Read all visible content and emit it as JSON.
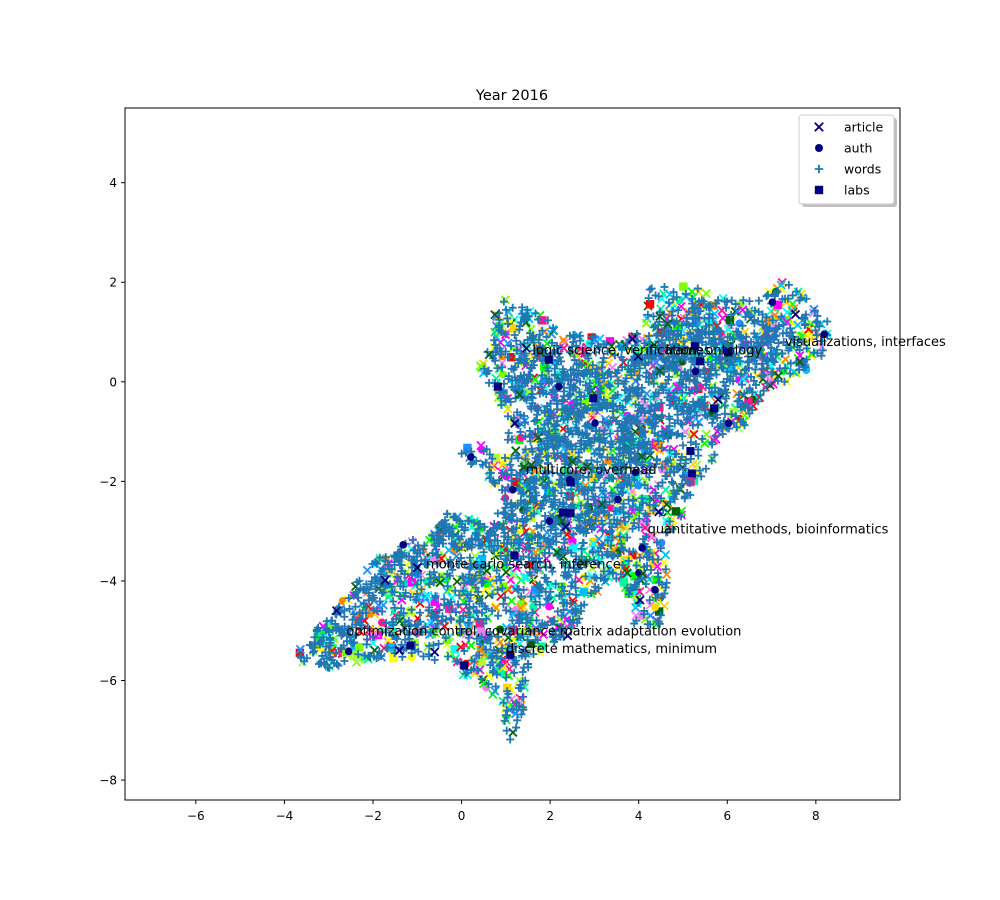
{
  "chart_data": {
    "type": "scatter",
    "title": "Year 2016",
    "xlabel": "",
    "ylabel": "",
    "xlim": [
      -7.6,
      9.9
    ],
    "ylim": [
      -8.4,
      5.5
    ],
    "xticks": [
      -6,
      -4,
      -2,
      0,
      2,
      4,
      6,
      8
    ],
    "yticks": [
      -8,
      -6,
      -4,
      -2,
      0,
      2,
      4
    ],
    "xtick_labels": [
      "−6",
      "−4",
      "−2",
      "0",
      "2",
      "4",
      "6",
      "8"
    ],
    "ytick_labels": [
      "−8",
      "−6",
      "−4",
      "−2",
      "0",
      "2",
      "4"
    ],
    "grid": false,
    "legend_position": "top-right",
    "legend": [
      {
        "label": "article",
        "marker": "x",
        "color": "#000080"
      },
      {
        "label": "auth",
        "marker": "circle",
        "color": "#000080"
      },
      {
        "label": "words",
        "marker": "plus",
        "color": "#1f77b4"
      },
      {
        "label": "labs",
        "marker": "square",
        "color": "#000080"
      }
    ],
    "cluster_annotations": [
      {
        "text": "logic science, verification, ontology",
        "x": 1.6,
        "y": 0.55
      },
      {
        "text": "frames",
        "x": 4.6,
        "y": 0.55
      },
      {
        "text": "visualizations, interfaces",
        "x": 7.3,
        "y": 0.72
      },
      {
        "text": "multicore, overhead",
        "x": 1.45,
        "y": -1.85
      },
      {
        "text": "quantitative methods, bioinformatics",
        "x": 4.2,
        "y": -3.05
      },
      {
        "text": "monte carlo search, inference",
        "x": -0.8,
        "y": -3.75
      },
      {
        "text": "optimization control, covariance matrix adaptation evolution",
        "x": -2.6,
        "y": -5.1
      },
      {
        "text": "discrete mathematics, minimum",
        "x": 1.0,
        "y": -5.45
      }
    ],
    "cloud_shape": [
      [
        -3.9,
        -5.6
      ],
      [
        -3.0,
        -5.75
      ],
      [
        -1.5,
        -5.55
      ],
      [
        -0.3,
        -5.7
      ],
      [
        0.4,
        -6.1
      ],
      [
        0.9,
        -6.4
      ],
      [
        1.0,
        -7.2
      ],
      [
        1.3,
        -7.2
      ],
      [
        1.45,
        -6.3
      ],
      [
        1.55,
        -5.6
      ],
      [
        2.6,
        -5.0
      ],
      [
        3.0,
        -4.3
      ],
      [
        3.6,
        -3.9
      ],
      [
        3.9,
        -4.9
      ],
      [
        4.5,
        -4.9
      ],
      [
        4.7,
        -4.1
      ],
      [
        4.6,
        -3.2
      ],
      [
        4.95,
        -2.8
      ],
      [
        5.2,
        -2.2
      ],
      [
        5.6,
        -1.7
      ],
      [
        5.9,
        -1.1
      ],
      [
        6.4,
        -0.9
      ],
      [
        6.2,
        -1.35
      ],
      [
        6.6,
        -0.5
      ],
      [
        6.9,
        -0.2
      ],
      [
        7.6,
        0.1
      ],
      [
        8.2,
        0.5
      ],
      [
        8.3,
        1.2
      ],
      [
        7.4,
        2.1
      ],
      [
        6.6,
        1.6
      ],
      [
        5.6,
        1.8
      ],
      [
        5.1,
        1.95
      ],
      [
        4.2,
        1.9
      ],
      [
        4.1,
        1.0
      ],
      [
        3.5,
        0.85
      ],
      [
        2.5,
        0.95
      ],
      [
        1.75,
        1.35
      ],
      [
        1.0,
        1.7
      ],
      [
        0.7,
        1.3
      ],
      [
        0.6,
        0.65
      ],
      [
        0.4,
        0.3
      ],
      [
        0.8,
        -0.3
      ],
      [
        1.1,
        -0.9
      ],
      [
        0.9,
        -1.6
      ],
      [
        0.45,
        -1.2
      ],
      [
        -0.1,
        -1.4
      ],
      [
        0.5,
        -1.9
      ],
      [
        1.0,
        -2.4
      ],
      [
        0.6,
        -2.9
      ],
      [
        -0.3,
        -2.6
      ],
      [
        -0.6,
        -3.0
      ],
      [
        -1.3,
        -3.25
      ],
      [
        -2.0,
        -3.6
      ],
      [
        -2.6,
        -4.3
      ],
      [
        -3.2,
        -4.9
      ]
    ],
    "dense_core": [
      [
        -3.6,
        -5.5
      ],
      [
        -2.8,
        -5.2
      ],
      [
        -2.0,
        -4.6
      ],
      [
        -1.2,
        -4.0
      ],
      [
        -0.5,
        -3.4
      ],
      [
        0.5,
        -3.3
      ],
      [
        1.2,
        -3.6
      ],
      [
        2.2,
        -3.5
      ],
      [
        3.0,
        -3.0
      ],
      [
        3.6,
        -2.2
      ],
      [
        4.2,
        -1.6
      ],
      [
        4.8,
        -1.0
      ],
      [
        5.6,
        -0.4
      ],
      [
        6.4,
        0.2
      ],
      [
        7.2,
        0.5
      ],
      [
        7.6,
        0.9
      ],
      [
        7.0,
        1.2
      ],
      [
        6.0,
        1.0
      ],
      [
        5.0,
        1.2
      ],
      [
        4.4,
        1.3
      ],
      [
        3.8,
        0.4
      ],
      [
        2.8,
        0.3
      ],
      [
        2.0,
        0.7
      ],
      [
        1.3,
        0.9
      ],
      [
        1.1,
        0.0
      ],
      [
        1.6,
        -0.8
      ],
      [
        1.4,
        -1.6
      ],
      [
        1.2,
        -2.4
      ],
      [
        0.6,
        -2.6
      ],
      [
        -0.1,
        -2.0
      ],
      [
        -0.6,
        -2.4
      ],
      [
        -1.4,
        -3.4
      ],
      [
        -2.4,
        -4.2
      ],
      [
        -3.2,
        -4.8
      ]
    ],
    "scatter_colors": [
      "#00ff00",
      "#ffff00",
      "#7cff00",
      "#ffd700",
      "#00ffff",
      "#1e90ff",
      "#ff0000",
      "#ff00ff",
      "#ff8c00",
      "#006400",
      "#ee82ee",
      "#00fa9a",
      "#adff2f",
      "#00bfff",
      "#ff1493"
    ]
  }
}
